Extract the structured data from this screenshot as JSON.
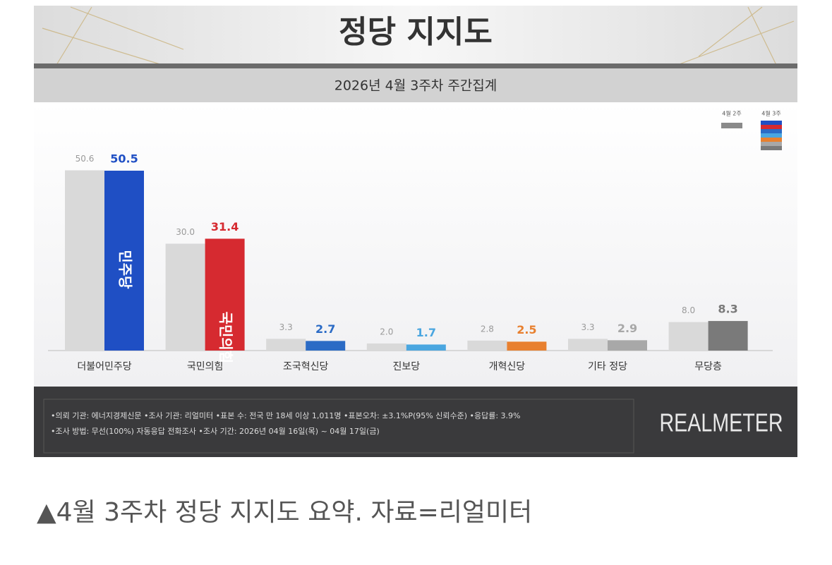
{
  "chart_data": {
    "type": "bar",
    "title": "정당 지지도",
    "subtitle": "2026년 4월 3주차 주간집계",
    "categories": [
      "더불어민주당",
      "국민의힘",
      "조국혁신당",
      "진보당",
      "개혁신당",
      "기타 정당",
      "무당층"
    ],
    "series": [
      {
        "name": "4월 2주",
        "color": "#d9d9d9",
        "values": [
          50.6,
          30.0,
          3.3,
          2.0,
          2.8,
          3.3,
          8.0
        ],
        "value_labels": [
          "50.6",
          "30.0",
          "3.3",
          "2.0",
          "2.8",
          "3.3",
          "8.0"
        ]
      },
      {
        "name": "4월 3주",
        "colors": [
          "#1f4fc4",
          "#d62a30",
          "#2b6bc5",
          "#4aa6e0",
          "#e8802f",
          "#a8a8a8",
          "#7a7a7a"
        ],
        "values": [
          50.5,
          31.4,
          2.7,
          1.7,
          2.5,
          2.9,
          8.3
        ]
      }
    ],
    "annotations": [
      "민주당",
      "국민의힘"
    ],
    "notes": [
      "•의뢰 기관: 에너지경제신문   •조사 기관: 리얼미터   •표본 수: 전국 만 18세 이상 1,011명   •표본오차: ±3.1%P(95% 신뢰수준)   •응답률: 3.9%",
      "•조사 방법: 무선(100%) 자동응답 전화조사   •조사 기간: 2026년 04월 16일(목) ~ 04월 17일(금)"
    ],
    "source": "REALMETER"
  },
  "caption": "▲4월 3주차 정당 지지도 요약. 자료=리얼미터"
}
